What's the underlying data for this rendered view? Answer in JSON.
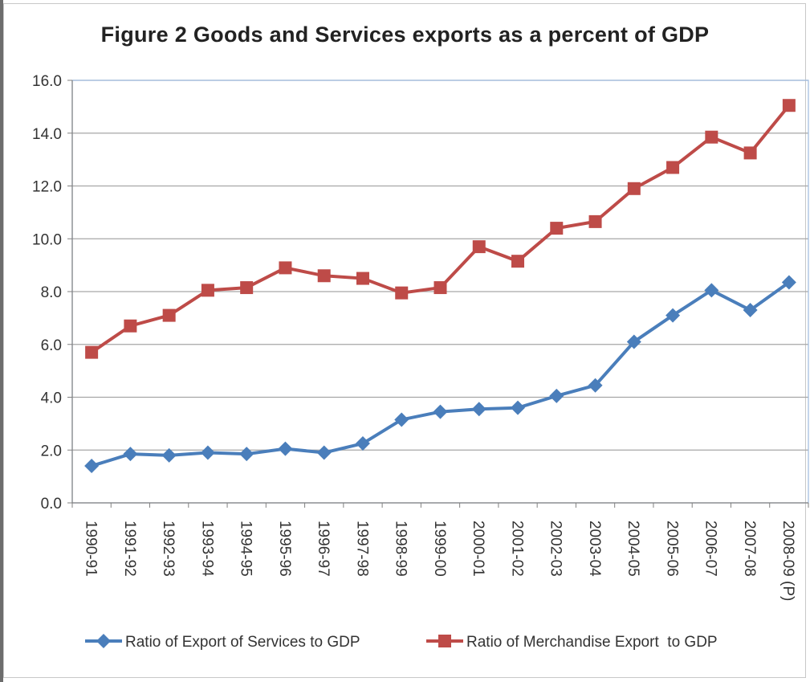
{
  "chart_data": {
    "type": "line",
    "title": "Figure 2  Goods and Services exports as a percent of GDP",
    "xlabel": "",
    "ylabel": "",
    "ylim": [
      0,
      16
    ],
    "y_ticks": [
      "0.0",
      "2.0",
      "4.0",
      "6.0",
      "8.0",
      "10.0",
      "12.0",
      "14.0",
      "16.0"
    ],
    "grid": true,
    "legend_position": "bottom",
    "categories": [
      "1990-91",
      "1991-92",
      "1992-93",
      "1993-94",
      "1994-95",
      "1995-96",
      "1996-97",
      "1997-98",
      "1998-99",
      "1999-00",
      "2000-01",
      "2001-02",
      "2002-03",
      "2003-04",
      "2004-05",
      "2005-06",
      "2006-07",
      "2007-08",
      "2008-09 (P)"
    ],
    "series": [
      {
        "name": "Ratio of Export of Services to GDP",
        "color": "#4a7ebb",
        "marker": "diamond",
        "values": [
          1.4,
          1.85,
          1.8,
          1.9,
          1.85,
          2.05,
          1.9,
          2.25,
          3.15,
          3.45,
          3.55,
          3.6,
          4.05,
          4.45,
          6.1,
          7.1,
          8.05,
          7.3,
          8.35
        ]
      },
      {
        "name": "Ratio of Merchandise Export  to GDP",
        "color": "#be4b48",
        "marker": "square",
        "values": [
          5.7,
          6.7,
          7.1,
          8.05,
          8.15,
          8.9,
          8.6,
          8.5,
          7.95,
          8.15,
          9.7,
          9.15,
          10.4,
          10.65,
          11.9,
          12.7,
          13.85,
          13.25,
          15.05
        ]
      }
    ]
  }
}
